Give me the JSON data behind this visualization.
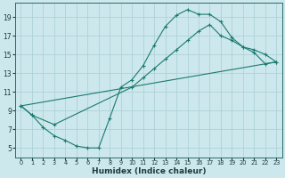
{
  "xlabel": "Humidex (Indice chaleur)",
  "bg_color": "#cce8ec",
  "grid_color": "#a8cdd4",
  "line_color": "#1a7a6e",
  "xlim": [
    -0.5,
    23.5
  ],
  "ylim": [
    4.0,
    20.5
  ],
  "xticks": [
    0,
    1,
    2,
    3,
    4,
    5,
    6,
    7,
    8,
    9,
    10,
    11,
    12,
    13,
    14,
    15,
    16,
    17,
    18,
    19,
    20,
    21,
    22,
    23
  ],
  "yticks": [
    5,
    7,
    9,
    11,
    13,
    15,
    17,
    19
  ],
  "curve1_x": [
    0,
    1,
    2,
    3,
    4,
    5,
    6,
    7,
    8,
    9,
    10,
    11,
    12,
    13,
    14,
    15,
    16,
    17,
    18,
    19,
    20,
    21,
    22,
    23
  ],
  "curve1_y": [
    9.5,
    8.5,
    7.2,
    6.3,
    5.8,
    5.2,
    5.0,
    5.0,
    8.2,
    11.5,
    12.3,
    13.8,
    16.0,
    18.0,
    19.2,
    19.8,
    19.3,
    19.3,
    18.5,
    16.8,
    15.8,
    15.2,
    14.0,
    14.2
  ],
  "curve2_x": [
    0,
    1,
    3,
    10,
    11,
    12,
    13,
    14,
    15,
    16,
    17,
    18,
    19,
    20,
    21,
    22,
    23
  ],
  "curve2_y": [
    9.5,
    8.5,
    7.5,
    11.5,
    12.5,
    13.5,
    14.5,
    15.5,
    16.5,
    17.5,
    18.2,
    17.0,
    16.5,
    15.8,
    15.5,
    15.0,
    14.2
  ],
  "curve3_x": [
    0,
    23
  ],
  "curve3_y": [
    9.5,
    14.2
  ]
}
